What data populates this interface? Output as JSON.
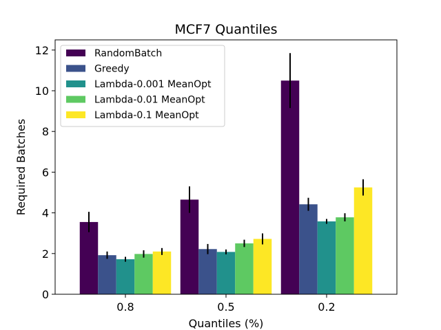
{
  "chart_data": {
    "type": "bar",
    "title": "MCF7 Quantiles",
    "xlabel": "Quantiles (%)",
    "ylabel": "Required Batches",
    "categories": [
      "0.8",
      "0.5",
      "0.2"
    ],
    "ylim": [
      0,
      12.5
    ],
    "yticks": [
      "0",
      "2",
      "4",
      "6",
      "8",
      "10",
      "12"
    ],
    "legend_position": "top-left",
    "series": [
      {
        "name": "RandomBatch",
        "color": "#440154",
        "values": [
          3.55,
          4.65,
          10.5
        ],
        "errors": [
          0.5,
          0.65,
          1.35
        ]
      },
      {
        "name": "Greedy",
        "color": "#3b528b",
        "values": [
          1.92,
          2.22,
          4.42
        ],
        "errors": [
          0.18,
          0.25,
          0.32
        ]
      },
      {
        "name": "Lambda-0.001 MeanOpt",
        "color": "#21918c",
        "values": [
          1.72,
          2.08,
          3.58
        ],
        "errors": [
          0.12,
          0.12,
          0.12
        ]
      },
      {
        "name": "Lambda-0.01 MeanOpt",
        "color": "#5ec962",
        "values": [
          1.98,
          2.5,
          3.78
        ],
        "errors": [
          0.18,
          0.18,
          0.2
        ]
      },
      {
        "name": "Lambda-0.1 MeanOpt",
        "color": "#fde725",
        "values": [
          2.1,
          2.72,
          5.25
        ],
        "errors": [
          0.17,
          0.27,
          0.4
        ]
      }
    ]
  }
}
